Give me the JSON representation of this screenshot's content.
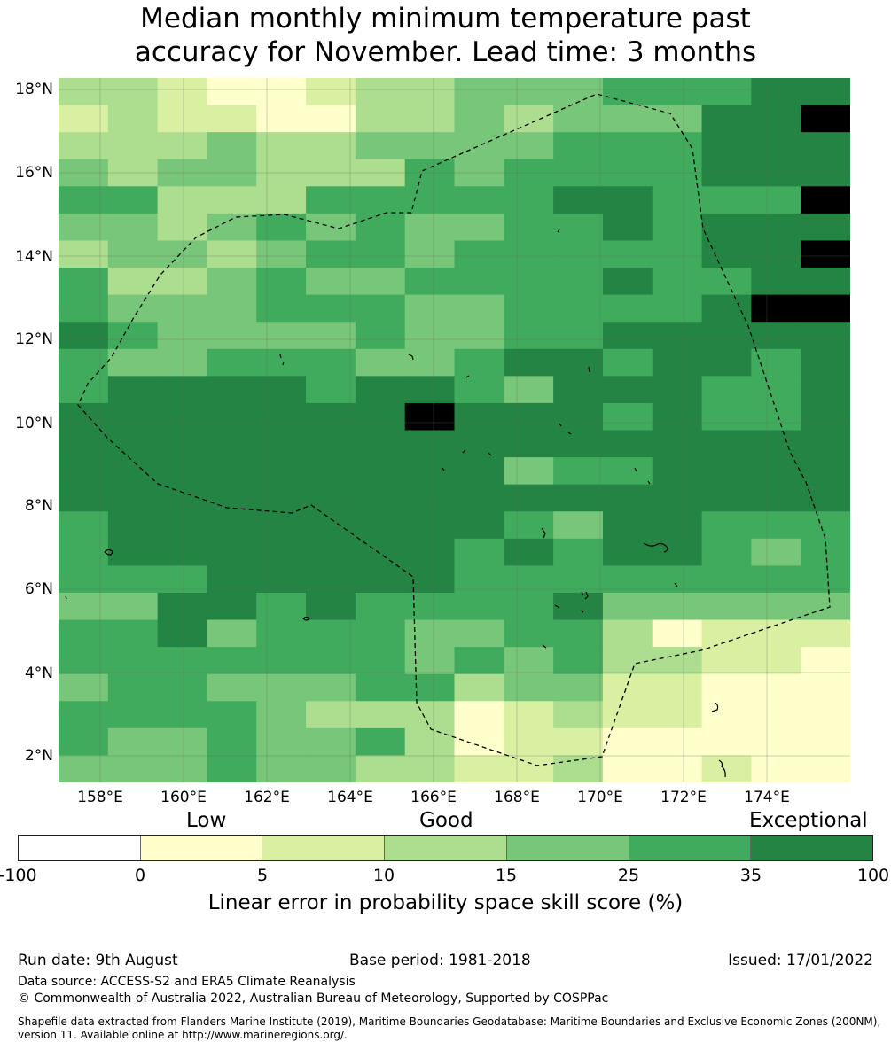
{
  "title": {
    "line1": "Median monthly minimum temperature past",
    "line2": "accuracy for November. Lead time: 3 months"
  },
  "map": {
    "lat_ticks": [
      "18°N",
      "16°N",
      "14°N",
      "12°N",
      "10°N",
      "8°N",
      "6°N",
      "4°N",
      "2°N"
    ],
    "lon_ticks": [
      "158°E",
      "160°E",
      "162°E",
      "164°E",
      "166°E",
      "168°E",
      "170°E",
      "172°E",
      "174°E"
    ],
    "grid_lines": true,
    "boundary": "dashed EEZ outline",
    "grid_rows": [
      "2210012233344455",
      "1211002232333556",
      "2223223333444555",
      "3233222434444555",
      "4422244444554446",
      "3323434334454555",
      "2332344344444556",
      "4223433444454455",
      "4333444334444566",
      "5433334334455555",
      "4334443345545545",
      "4555545543555445",
      "5555555655545445",
      "5555555555555555",
      "5555555553445555",
      "5555555555555555",
      "4555555554355444",
      "4555555545455434",
      "4445555544444444",
      "3355454444533333",
      "4453444334420111",
      "4444444343422110",
      "3443334423311000",
      "4444322201211000",
      "4334334201100000",
      "3334332211200100"
    ]
  },
  "colorbar": {
    "category_words": [
      "Low",
      "Good",
      "Exceptional"
    ],
    "ticks": [
      "-100",
      "0",
      "5",
      "10",
      "15",
      "25",
      "35",
      "100"
    ],
    "colors": [
      "#ffffff",
      "#ffffcc",
      "#d9f0a3",
      "#addd8e",
      "#78c679",
      "#41ab5d",
      "#238443"
    ],
    "label": "Linear error in probability space skill score (%)"
  },
  "footer": {
    "run_date": "Run date: 9th August",
    "base_period": "Base period: 1981-2018",
    "issued": "Issued: 17/01/2022",
    "data_source": "Data source: ACCESS-S2 and ERA5 Climate Reanalysis",
    "copyright": "© Commonwealth of Australia 2022, Australian Bureau of Meteorology, Supported by COSPPac",
    "shapefile": "Shapefile data extracted from Flanders Marine Institute (2019), Maritime Boundaries Geodatabase: Maritime Boundaries and Exclusive Economic Zones (200NM), version 11. Available online at http://www.marineregions.org/."
  }
}
